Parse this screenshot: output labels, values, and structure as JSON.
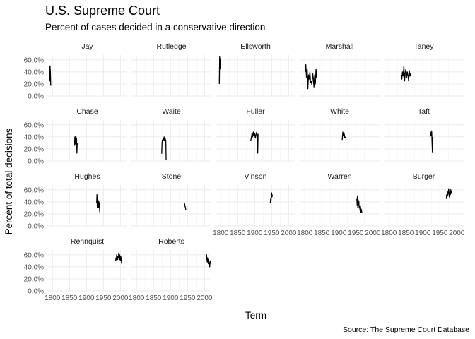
{
  "title": "U.S. Supreme Court",
  "subtitle": "Percent of cases decided in a conservative direction",
  "caption": "Source: The Supreme Court Database",
  "chart_data": {
    "type": "line",
    "facet_by": "Chief Justice",
    "xlabel": "Term",
    "ylabel": "Percent of total decisions",
    "xlim": [
      1785,
      2020
    ],
    "ylim": [
      0,
      0.68
    ],
    "x_ticks": [
      1800,
      1850,
      1900,
      1950,
      2000
    ],
    "y_ticks": [
      0,
      0.2,
      0.4,
      0.6
    ],
    "y_tick_labels": [
      "0.0%",
      "20.0%",
      "40.0%",
      "60.0%"
    ],
    "grid": true,
    "panels": [
      {
        "name": "Jay",
        "x": [
          1791,
          1792,
          1793,
          1794,
          1795
        ],
        "y": [
          0.5,
          0.25,
          0.5,
          0.4,
          0.17
        ]
      },
      {
        "name": "Rutledge",
        "x": [],
        "y": []
      },
      {
        "name": "Ellsworth",
        "x": [
          1796,
          1797,
          1798,
          1799,
          1800
        ],
        "y": [
          0.2,
          0.66,
          0.45,
          0.62,
          0.5
        ]
      },
      {
        "name": "Marshall",
        "x": [
          1801,
          1803,
          1805,
          1807,
          1809,
          1811,
          1813,
          1815,
          1817,
          1819,
          1821,
          1823,
          1825,
          1827,
          1829,
          1831,
          1833,
          1835
        ],
        "y": [
          0.4,
          0.52,
          0.3,
          0.45,
          0.12,
          0.35,
          0.28,
          0.4,
          0.22,
          0.25,
          0.18,
          0.38,
          0.3,
          0.15,
          0.35,
          0.2,
          0.45,
          0.3
        ]
      },
      {
        "name": "Taney",
        "x": [
          1836,
          1838,
          1840,
          1842,
          1844,
          1846,
          1848,
          1850,
          1852,
          1854,
          1856,
          1858,
          1860,
          1862,
          1864
        ],
        "y": [
          0.35,
          0.28,
          0.4,
          0.33,
          0.5,
          0.25,
          0.38,
          0.45,
          0.3,
          0.4,
          0.35,
          0.25,
          0.42,
          0.33,
          0.38
        ]
      },
      {
        "name": "Chase",
        "x": [
          1864,
          1865,
          1866,
          1867,
          1868,
          1869,
          1870,
          1871,
          1872,
          1873
        ],
        "y": [
          0.25,
          0.3,
          0.4,
          0.28,
          0.38,
          0.42,
          0.35,
          0.38,
          0.13,
          0.3
        ]
      },
      {
        "name": "Waite",
        "x": [
          1874,
          1875,
          1876,
          1877,
          1878,
          1879,
          1880,
          1881,
          1882,
          1883,
          1884,
          1885,
          1886,
          1887
        ],
        "y": [
          0.12,
          0.3,
          0.35,
          0.32,
          0.38,
          0.36,
          0.35,
          0.4,
          0.37,
          0.33,
          0.38,
          0.35,
          0.35,
          0.02
        ]
      },
      {
        "name": "Fuller",
        "x": [
          1888,
          1890,
          1892,
          1894,
          1896,
          1898,
          1900,
          1902,
          1904,
          1906,
          1908,
          1909,
          1910
        ],
        "y": [
          0.33,
          0.38,
          0.45,
          0.4,
          0.48,
          0.42,
          0.46,
          0.38,
          0.44,
          0.48,
          0.4,
          0.13,
          0.45
        ]
      },
      {
        "name": "White",
        "x": [
          1910,
          1912,
          1914,
          1916,
          1918,
          1920
        ],
        "y": [
          0.35,
          0.48,
          0.42,
          0.45,
          0.38,
          0.4
        ]
      },
      {
        "name": "Taft",
        "x": [
          1921,
          1922,
          1923,
          1924,
          1925,
          1926,
          1927,
          1928,
          1929
        ],
        "y": [
          0.4,
          0.45,
          0.47,
          0.42,
          0.5,
          0.48,
          0.3,
          0.15,
          0.4
        ]
      },
      {
        "name": "Hughes",
        "x": [
          1930,
          1931,
          1932,
          1933,
          1934,
          1935,
          1936,
          1937,
          1938,
          1939,
          1940
        ],
        "y": [
          0.38,
          0.52,
          0.3,
          0.45,
          0.35,
          0.42,
          0.3,
          0.4,
          0.35,
          0.25,
          0.22
        ]
      },
      {
        "name": "Stone",
        "x": [
          1941,
          1942,
          1943,
          1944,
          1945
        ],
        "y": [
          0.38,
          0.35,
          0.32,
          0.3,
          0.27
        ]
      },
      {
        "name": "Vinson",
        "x": [
          1946,
          1947,
          1948,
          1949,
          1950,
          1951,
          1952
        ],
        "y": [
          0.38,
          0.45,
          0.4,
          0.5,
          0.55,
          0.48,
          0.52
        ]
      },
      {
        "name": "Warren",
        "x": [
          1953,
          1954,
          1955,
          1956,
          1957,
          1958,
          1959,
          1960,
          1961,
          1962,
          1963,
          1964,
          1965,
          1966,
          1967,
          1968
        ],
        "y": [
          0.45,
          0.35,
          0.5,
          0.3,
          0.4,
          0.35,
          0.42,
          0.3,
          0.33,
          0.28,
          0.25,
          0.32,
          0.22,
          0.28,
          0.25,
          0.22
        ]
      },
      {
        "name": "Burger",
        "x": [
          1969,
          1970,
          1971,
          1972,
          1973,
          1974,
          1975,
          1976,
          1977,
          1978,
          1979,
          1980,
          1981,
          1982,
          1983,
          1984,
          1985
        ],
        "y": [
          0.45,
          0.52,
          0.48,
          0.55,
          0.5,
          0.58,
          0.55,
          0.62,
          0.52,
          0.48,
          0.55,
          0.57,
          0.52,
          0.6,
          0.55,
          0.58,
          0.56
        ]
      },
      {
        "name": "Rehnquist",
        "x": [
          1986,
          1987,
          1988,
          1989,
          1990,
          1991,
          1992,
          1993,
          1994,
          1995,
          1996,
          1997,
          1998,
          1999,
          2000,
          2001,
          2002,
          2003,
          2004
        ],
        "y": [
          0.5,
          0.55,
          0.52,
          0.6,
          0.58,
          0.55,
          0.52,
          0.57,
          0.55,
          0.63,
          0.58,
          0.52,
          0.6,
          0.55,
          0.5,
          0.58,
          0.53,
          0.48,
          0.45
        ]
      },
      {
        "name": "Roberts",
        "x": [
          2005,
          2006,
          2007,
          2008,
          2009,
          2010,
          2011,
          2012,
          2013,
          2014,
          2015,
          2016,
          2017,
          2018
        ],
        "y": [
          0.55,
          0.6,
          0.52,
          0.48,
          0.55,
          0.5,
          0.45,
          0.52,
          0.48,
          0.44,
          0.4,
          0.46,
          0.5,
          0.45
        ]
      }
    ]
  }
}
